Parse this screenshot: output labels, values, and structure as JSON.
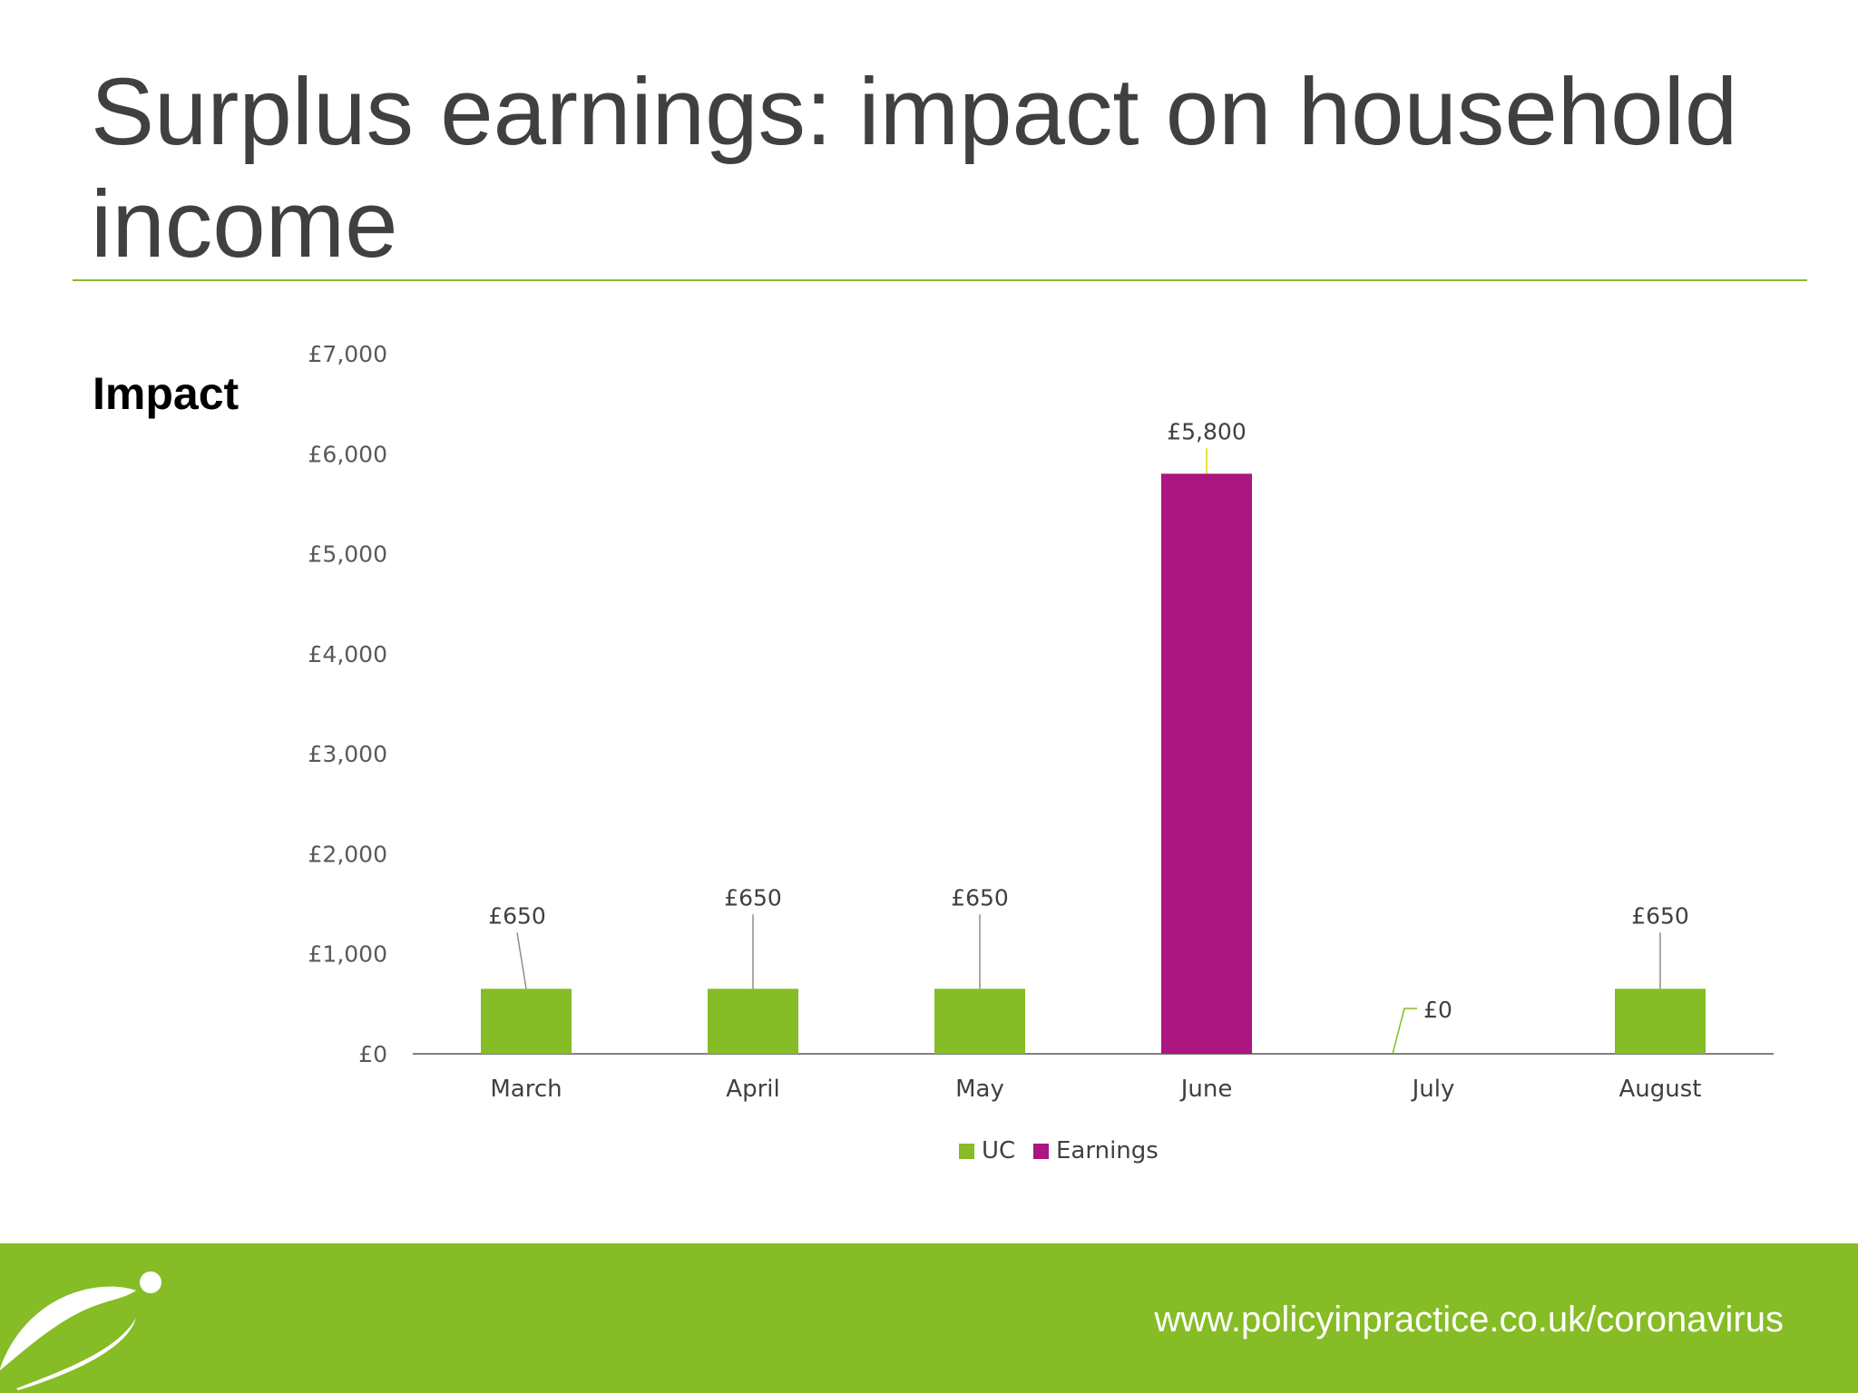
{
  "slide": {
    "title": "Surplus earnings: impact on household income",
    "side_label": "Impact",
    "footer_url": "www.policyinpractice.co.uk/coronavirus"
  },
  "colors": {
    "accent_green": "#86bc25",
    "earnings_magenta": "#ab1680",
    "title_text": "#404040"
  },
  "icons": {
    "logo": "policy-in-practice-swoosh-logo"
  },
  "chart_data": {
    "type": "bar",
    "title": "",
    "xlabel": "",
    "ylabel": "",
    "ylim": [
      0,
      7000
    ],
    "yticks": [
      0,
      1000,
      2000,
      3000,
      4000,
      5000,
      6000,
      7000
    ],
    "ytick_labels": [
      "£0",
      "£1,000",
      "£2,000",
      "£3,000",
      "£4,000",
      "£5,000",
      "£6,000",
      "£7,000"
    ],
    "categories": [
      "March",
      "April",
      "May",
      "June",
      "July",
      "August"
    ],
    "values": [
      650,
      650,
      650,
      5800,
      0,
      650
    ],
    "data_labels": [
      "£650",
      "£650",
      "£650",
      "£5,800",
      "£0",
      "£650"
    ],
    "bar_series": [
      "UC",
      "UC",
      "UC",
      "Earnings",
      "UC",
      "UC"
    ],
    "series": [
      {
        "name": "UC",
        "color": "#86bc25"
      },
      {
        "name": "Earnings",
        "color": "#ab1680"
      }
    ],
    "legend_position": "bottom",
    "grid": false
  }
}
